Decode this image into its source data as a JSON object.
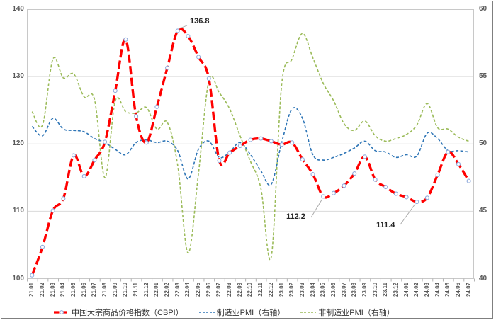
{
  "chart_data": {
    "type": "line",
    "title": "",
    "x_labels": [
      "21.01",
      "21.02",
      "21.03",
      "21.04",
      "21.05",
      "21.06",
      "21.07",
      "21.08",
      "21.09",
      "21.10",
      "21.11",
      "21.12",
      "22.01",
      "22.02",
      "22.03",
      "22.04",
      "22.05",
      "22.06",
      "22.07",
      "22.08",
      "22.09",
      "22.10",
      "22.11",
      "22.12",
      "23.01",
      "23.02",
      "23.03",
      "23.04",
      "23.05",
      "23.06",
      "23.07",
      "23.08",
      "23.09",
      "23.10",
      "23.11",
      "23.12",
      "24.01",
      "24.02",
      "24.03",
      "24.04",
      "24.05",
      "24.06",
      "24.07"
    ],
    "left_axis": {
      "min": 100,
      "max": 140,
      "ticks": [
        140,
        130,
        120,
        110,
        100
      ]
    },
    "right_axis": {
      "min": 40,
      "max": 60,
      "ticks": [
        60,
        55,
        50,
        45,
        40
      ]
    },
    "grid": "horizontal",
    "legend_position": "bottom",
    "series": [
      {
        "name": "中国大宗商品价格指数（CBPI）",
        "axis": "left",
        "color": "#ff0000",
        "style": "thick-dash-with-markers",
        "values": [
          100.5,
          104.7,
          110.1,
          111.9,
          118.3,
          115.2,
          117.6,
          120.3,
          127.9,
          135.5,
          124.1,
          120.2,
          125.5,
          131.3,
          136.8,
          136.0,
          132.9,
          129.7,
          117.5,
          118.7,
          119.7,
          120.6,
          120.8,
          120.4,
          119.9,
          120.2,
          117.7,
          115.5,
          112.2,
          112.7,
          113.8,
          115.6,
          118.1,
          114.7,
          113.6,
          112.6,
          112.1,
          111.4,
          112.0,
          115.4,
          118.8,
          117.0,
          114.5
        ]
      },
      {
        "name": "制造业PMI（右轴）",
        "axis": "right",
        "color": "#2e75b6",
        "style": "dash",
        "values": [
          51.3,
          50.6,
          51.9,
          51.1,
          51.0,
          50.9,
          50.4,
          50.1,
          49.6,
          49.2,
          50.1,
          50.3,
          50.1,
          50.2,
          49.5,
          47.4,
          49.6,
          50.2,
          49.0,
          49.4,
          50.1,
          49.2,
          48.0,
          47.0,
          50.1,
          52.6,
          51.9,
          49.2,
          48.8,
          49.0,
          49.3,
          49.7,
          50.2,
          49.5,
          49.4,
          49.0,
          49.2,
          49.1,
          50.8,
          50.4,
          49.5,
          49.5,
          49.4
        ]
      },
      {
        "name": "非制造业PMI（右轴）",
        "axis": "right",
        "color": "#9bbb59",
        "style": "dash",
        "values": [
          52.4,
          51.4,
          56.3,
          54.9,
          55.2,
          53.5,
          53.3,
          47.5,
          53.2,
          52.4,
          52.3,
          52.7,
          51.1,
          51.6,
          48.4,
          41.9,
          47.8,
          54.7,
          53.8,
          52.6,
          50.6,
          48.7,
          46.7,
          41.6,
          54.4,
          56.3,
          58.2,
          56.4,
          54.5,
          53.2,
          51.5,
          51.0,
          51.7,
          50.6,
          50.2,
          50.4,
          50.7,
          51.4,
          53.0,
          51.2,
          51.1,
          50.5,
          50.2
        ]
      }
    ],
    "annotations": [
      {
        "text": "136.8",
        "series": 0,
        "point_label": "22.03",
        "point_index": 14
      },
      {
        "text": "112.2",
        "series": 0,
        "point_label": "23.05",
        "point_index": 28
      },
      {
        "text": "111.4",
        "series": 0,
        "point_label": "24.02",
        "point_index": 37
      }
    ],
    "marker": {
      "shape": "circle",
      "fill": "#ffffff",
      "edge": "#8faadc"
    }
  }
}
